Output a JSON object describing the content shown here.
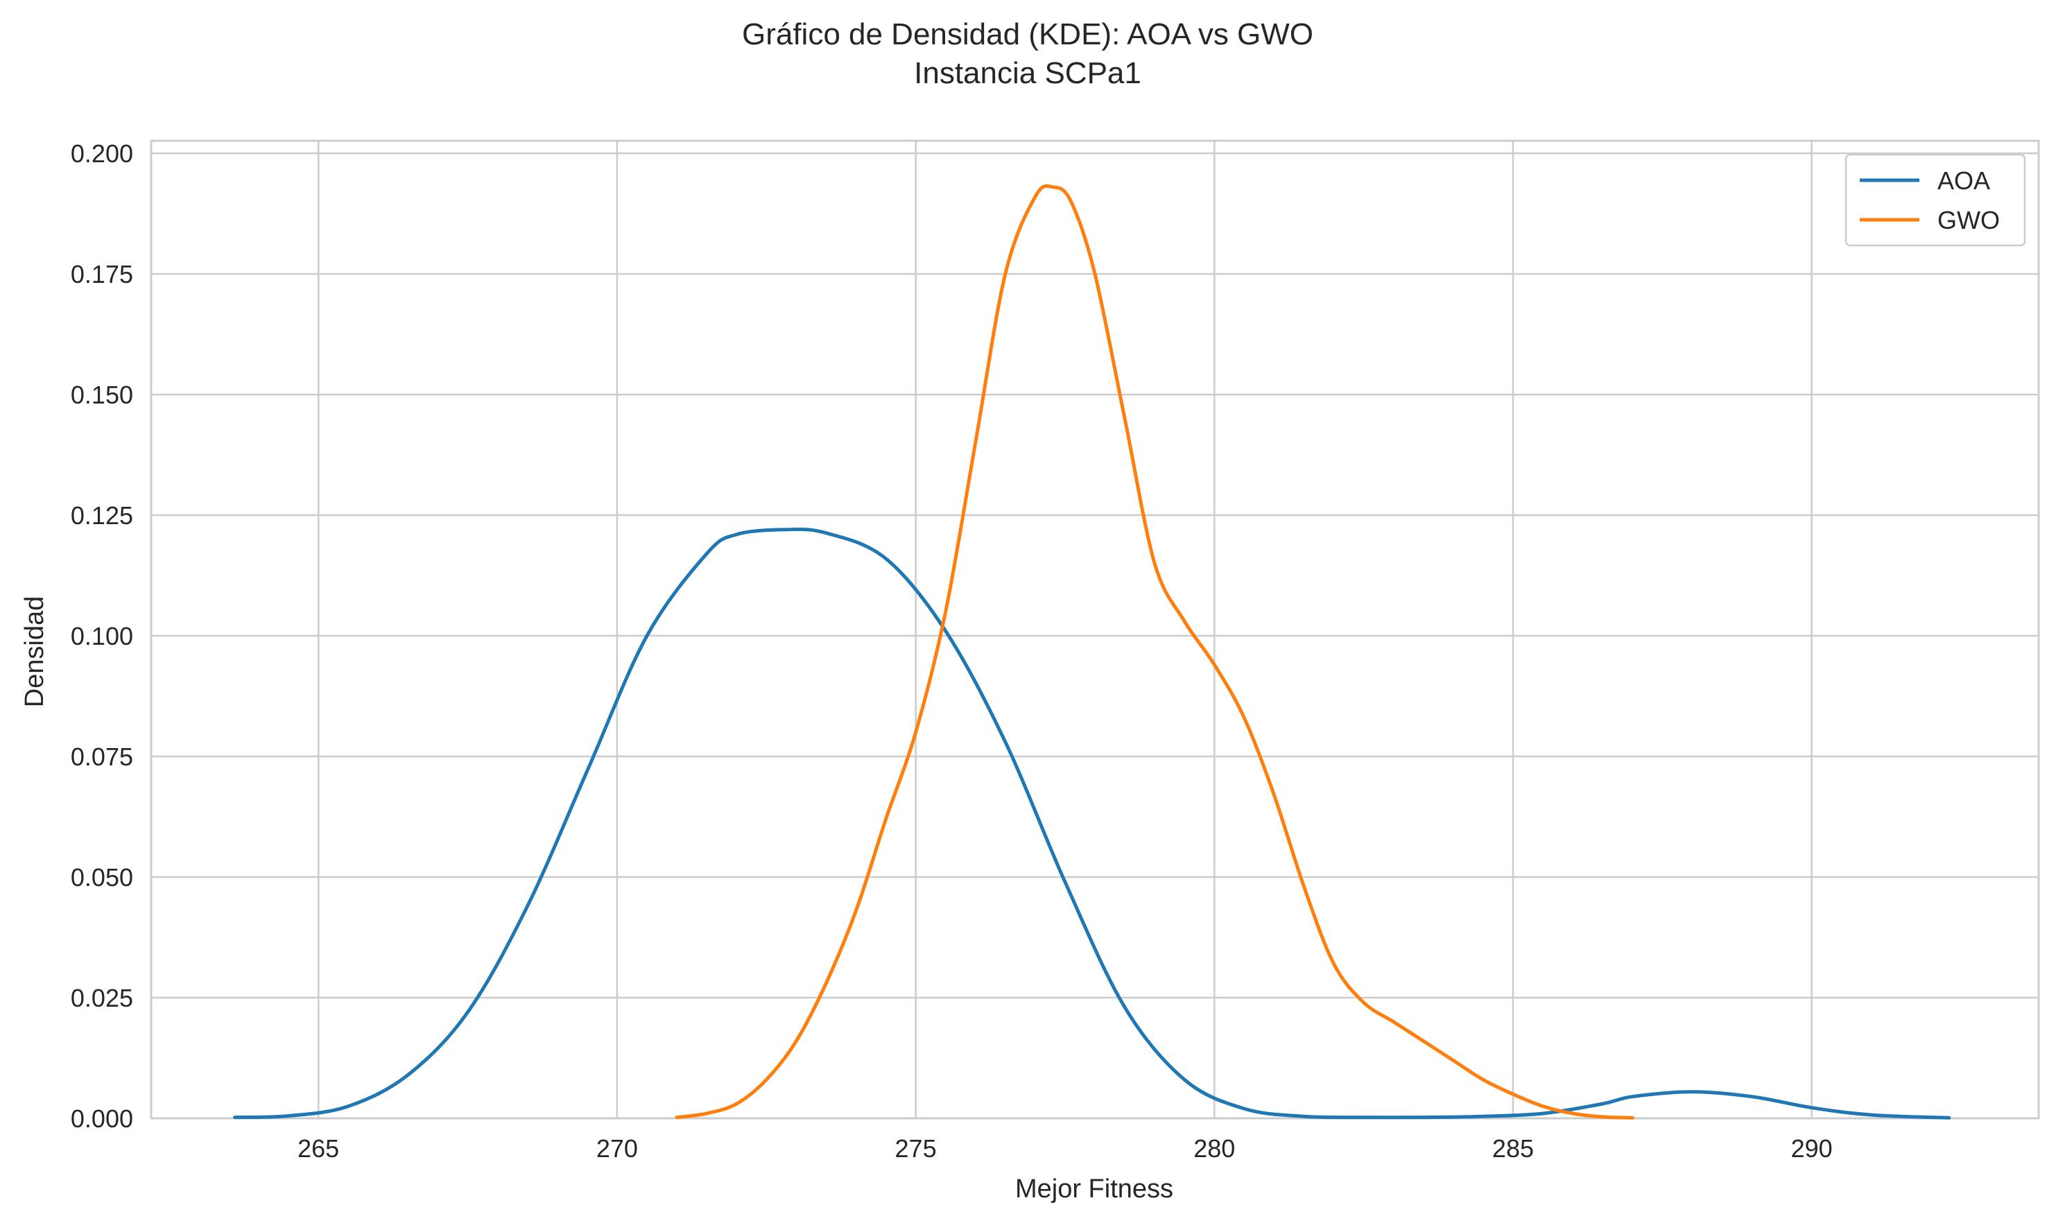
{
  "chart_data": {
    "type": "line",
    "title": "Gráfico de Densidad (KDE): AOA vs GWO",
    "subtitle": "Instancia SCPa1",
    "xlabel": "Mejor Fitness",
    "ylabel": "Densidad",
    "xlim": [
      262.2,
      293.8
    ],
    "ylim": [
      0,
      0.2026
    ],
    "x_ticks": [
      265,
      270,
      275,
      280,
      285,
      290
    ],
    "x_tick_labels": [
      "265",
      "270",
      "275",
      "280",
      "285",
      "290"
    ],
    "y_ticks": [
      0.0,
      0.025,
      0.05,
      0.075,
      0.1,
      0.125,
      0.15,
      0.175,
      0.2
    ],
    "y_tick_labels": [
      "0.000",
      "0.025",
      "0.050",
      "0.075",
      "0.100",
      "0.125",
      "0.150",
      "0.175",
      "0.200"
    ],
    "grid": true,
    "legend_position": "top-right",
    "series": [
      {
        "name": "AOA",
        "color": "#1f77b4",
        "x": [
          263.6,
          264.5,
          265.5,
          266.5,
          267.5,
          268.5,
          269.5,
          270.5,
          271.5,
          272.0,
          272.8,
          273.5,
          274.5,
          275.5,
          276.5,
          277.5,
          278.5,
          279.5,
          280.5,
          281.5,
          282.5,
          283.5,
          284.5,
          285.5,
          286.5,
          287.0,
          288.0,
          289.0,
          290.0,
          291.0,
          292.3
        ],
        "y": [
          0.0002,
          0.0005,
          0.0025,
          0.009,
          0.022,
          0.044,
          0.072,
          0.1,
          0.117,
          0.121,
          0.122,
          0.1213,
          0.116,
          0.101,
          0.078,
          0.049,
          0.023,
          0.008,
          0.002,
          0.0004,
          0.0002,
          0.0002,
          0.0004,
          0.001,
          0.003,
          0.0045,
          0.0055,
          0.0045,
          0.0022,
          0.0007,
          0.0001
        ]
      },
      {
        "name": "GWO",
        "color": "#ff7f0e",
        "x": [
          271.0,
          271.5,
          272.0,
          272.5,
          273.0,
          273.5,
          274.0,
          274.5,
          275.0,
          275.5,
          276.0,
          276.5,
          277.0,
          277.3,
          277.6,
          278.0,
          278.5,
          279.0,
          279.5,
          280.0,
          280.5,
          281.0,
          281.5,
          282.0,
          282.5,
          283.0,
          283.5,
          284.0,
          284.5,
          285.0,
          285.5,
          286.0,
          286.5,
          287.0
        ],
        "y": [
          0.0002,
          0.001,
          0.003,
          0.008,
          0.016,
          0.028,
          0.043,
          0.062,
          0.08,
          0.105,
          0.14,
          0.175,
          0.191,
          0.193,
          0.19,
          0.175,
          0.145,
          0.115,
          0.103,
          0.094,
          0.083,
          0.067,
          0.048,
          0.032,
          0.024,
          0.02,
          0.016,
          0.012,
          0.008,
          0.005,
          0.0025,
          0.001,
          0.0003,
          0.0001
        ]
      }
    ]
  }
}
